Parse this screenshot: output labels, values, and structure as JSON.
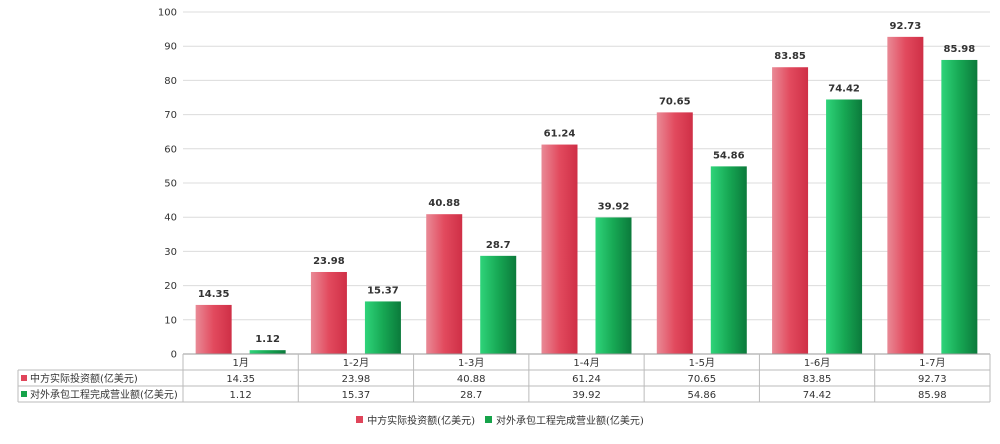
{
  "chart_data": {
    "type": "bar",
    "categories": [
      "1月",
      "1-2月",
      "1-3月",
      "1-4月",
      "1-5月",
      "1-6月",
      "1-7月"
    ],
    "series": [
      {
        "name": "中方实际投资额(亿美元)",
        "color": "#e0455a",
        "values": [
          14.35,
          23.98,
          40.88,
          61.24,
          70.65,
          83.85,
          92.73
        ],
        "value_labels": [
          "14.35",
          "23.98",
          "40.88",
          "61.24",
          "70.65",
          "83.85",
          "92.73"
        ]
      },
      {
        "name": "对外承包工程完成营业额(亿美元)",
        "color": "#16a34a",
        "values": [
          1.12,
          15.37,
          28.7,
          39.92,
          54.86,
          74.42,
          85.98
        ],
        "value_labels": [
          "1.12",
          "15.37",
          "28.7",
          "39.92",
          "54.86",
          "74.42",
          "85.98"
        ]
      }
    ],
    "y_ticks": [
      "0",
      "10",
      "20",
      "30",
      "40",
      "50",
      "60",
      "70",
      "80",
      "90",
      "100"
    ],
    "ylim": [
      0,
      100
    ],
    "grid": true,
    "data_table": true,
    "legend_position": "bottom"
  }
}
